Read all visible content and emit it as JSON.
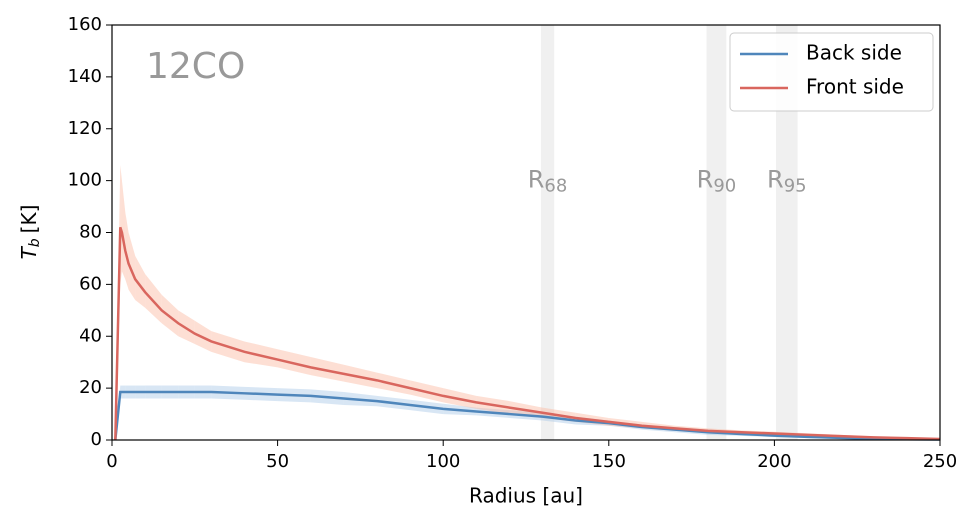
{
  "chart_data": {
    "type": "line",
    "annotation": "12CO",
    "xlabel": "Radius [au]",
    "ylabel": {
      "symbol": "T",
      "sub": "b",
      "unit": "[K]"
    },
    "xlim": [
      0,
      250
    ],
    "xticks": [
      0,
      50,
      100,
      150,
      200,
      250
    ],
    "ylim": [
      0,
      160
    ],
    "yticks": [
      0,
      20,
      40,
      60,
      80,
      100,
      120,
      140,
      160
    ],
    "legend": "upper right",
    "radii": [
      {
        "label": "R",
        "sub": "68",
        "range": [
          129.5,
          133.5
        ]
      },
      {
        "label": "R",
        "sub": "90",
        "range": [
          179.5,
          185.5
        ]
      },
      {
        "label": "R",
        "sub": "95",
        "range": [
          200.5,
          207
        ]
      }
    ],
    "radii_label_y": 100,
    "x": [
      1,
      2.5,
      3,
      4,
      5,
      7,
      10,
      15,
      20,
      25,
      30,
      40,
      50,
      60,
      70,
      80,
      90,
      100,
      110,
      120,
      130,
      140,
      150,
      160,
      170,
      180,
      190,
      200,
      210,
      220,
      230,
      240,
      250
    ],
    "series": [
      {
        "name": "Back side",
        "color": "#4f86bb",
        "band_color": "#a9c8e6",
        "values": [
          0,
          18.5,
          18.5,
          18.5,
          18.5,
          18.5,
          18.5,
          18.5,
          18.5,
          18.5,
          18.5,
          18,
          17.5,
          17,
          16,
          15,
          13.5,
          12,
          11,
          10,
          9,
          7.5,
          6.5,
          5,
          4,
          3,
          2.3,
          1.7,
          1.2,
          0.8,
          0.5,
          0.3,
          0.2
        ],
        "upper": [
          0,
          21,
          21,
          21,
          21,
          21,
          21,
          21,
          21,
          21,
          21,
          20.5,
          20,
          19.5,
          18.5,
          17,
          15.5,
          14,
          12.5,
          11.5,
          10.5,
          9,
          7.5,
          6,
          5,
          4,
          3,
          2.3,
          1.7,
          1.2,
          0.8,
          0.5,
          0.3
        ],
        "lower": [
          0,
          16,
          16,
          16,
          16,
          16,
          16,
          16,
          16,
          16,
          16,
          15.5,
          15,
          14.5,
          13.5,
          13,
          11.5,
          10,
          9.5,
          8.5,
          7.5,
          6,
          5.5,
          4,
          3,
          2,
          1.6,
          1.1,
          0.7,
          0.4,
          0.2,
          0.1,
          0.1
        ]
      },
      {
        "name": "Front side",
        "color": "#d9665e",
        "band_color": "#fbb9a0",
        "values": [
          0,
          82,
          80,
          73,
          68,
          62,
          57,
          50,
          45,
          41,
          38,
          34,
          31,
          28,
          25.5,
          23,
          20,
          17,
          14.5,
          12.5,
          10.5,
          8.5,
          7,
          5.5,
          4.5,
          3.5,
          3,
          2.5,
          2,
          1.5,
          1,
          0.7,
          0.4
        ],
        "upper": [
          0,
          106,
          100,
          88,
          80,
          71,
          64,
          56,
          50,
          46,
          42,
          38,
          35,
          32,
          29,
          26,
          23,
          20,
          17,
          15,
          12.5,
          10.5,
          8.5,
          7,
          5.5,
          4.5,
          3.7,
          3.2,
          2.6,
          2,
          1.4,
          1,
          0.6
        ],
        "lower": [
          0,
          60,
          65,
          62,
          58,
          54,
          51,
          45,
          40,
          37,
          34,
          30,
          28,
          25,
          22.5,
          20,
          17.5,
          14.5,
          12,
          10,
          8.5,
          7,
          5.5,
          4.5,
          3.5,
          2.8,
          2.2,
          1.8,
          1.3,
          0.9,
          0.5,
          0.3,
          0.2
        ]
      }
    ]
  }
}
